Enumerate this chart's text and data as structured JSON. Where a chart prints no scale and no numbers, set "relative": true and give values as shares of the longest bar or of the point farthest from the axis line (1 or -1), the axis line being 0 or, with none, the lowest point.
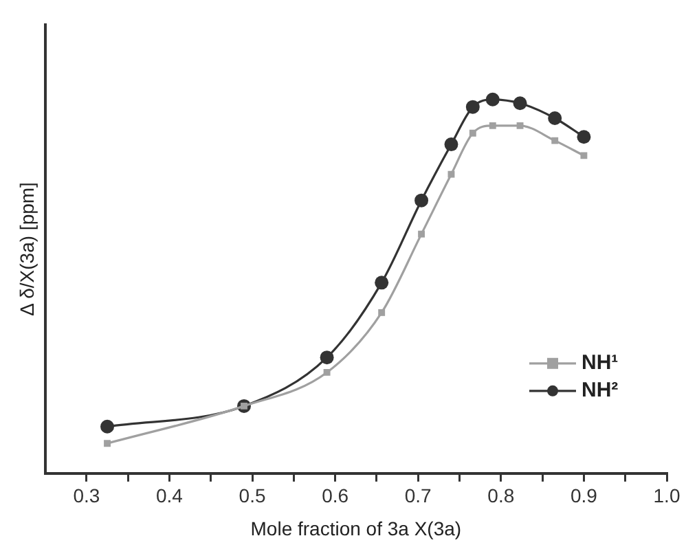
{
  "chart_data": {
    "type": "line",
    "xlabel": "Mole fraction of 3a X(3a)",
    "ylabel": "Δ δ/X(3a) [ppm]",
    "relative": true,
    "xlim": [
      0.25,
      1.0
    ],
    "xticks": [
      0.3,
      {
        "value": 0.35,
        "label": null
      },
      0.4,
      {
        "value": 0.45,
        "label": null
      },
      0.5,
      {
        "value": 0.55,
        "label": null
      },
      0.6,
      {
        "value": 0.65,
        "label": null
      },
      0.7,
      {
        "value": 0.75,
        "label": null
      },
      0.8,
      {
        "value": 0.85,
        "label": null
      },
      0.9,
      {
        "value": 0.95,
        "label": null
      },
      "1.0"
    ],
    "x": [
      0.325,
      0.49,
      0.59,
      0.656,
      0.704,
      0.74,
      0.766,
      0.79,
      0.823,
      0.865,
      0.9
    ],
    "series": [
      {
        "name": "NH¹",
        "color": "#a0a0a0",
        "marker": "square",
        "values": [
          0.08,
          0.18,
          0.27,
          0.43,
          0.64,
          0.8,
          0.91,
          0.93,
          0.93,
          0.89,
          0.85
        ]
      },
      {
        "name": "NH²",
        "color": "#333333",
        "marker": "circle",
        "values": [
          0.125,
          0.18,
          0.31,
          0.51,
          0.73,
          0.88,
          0.98,
          1,
          0.99,
          0.95,
          0.9
        ]
      }
    ],
    "grid": false,
    "legend": "bottom right",
    "line_style": "solid"
  }
}
